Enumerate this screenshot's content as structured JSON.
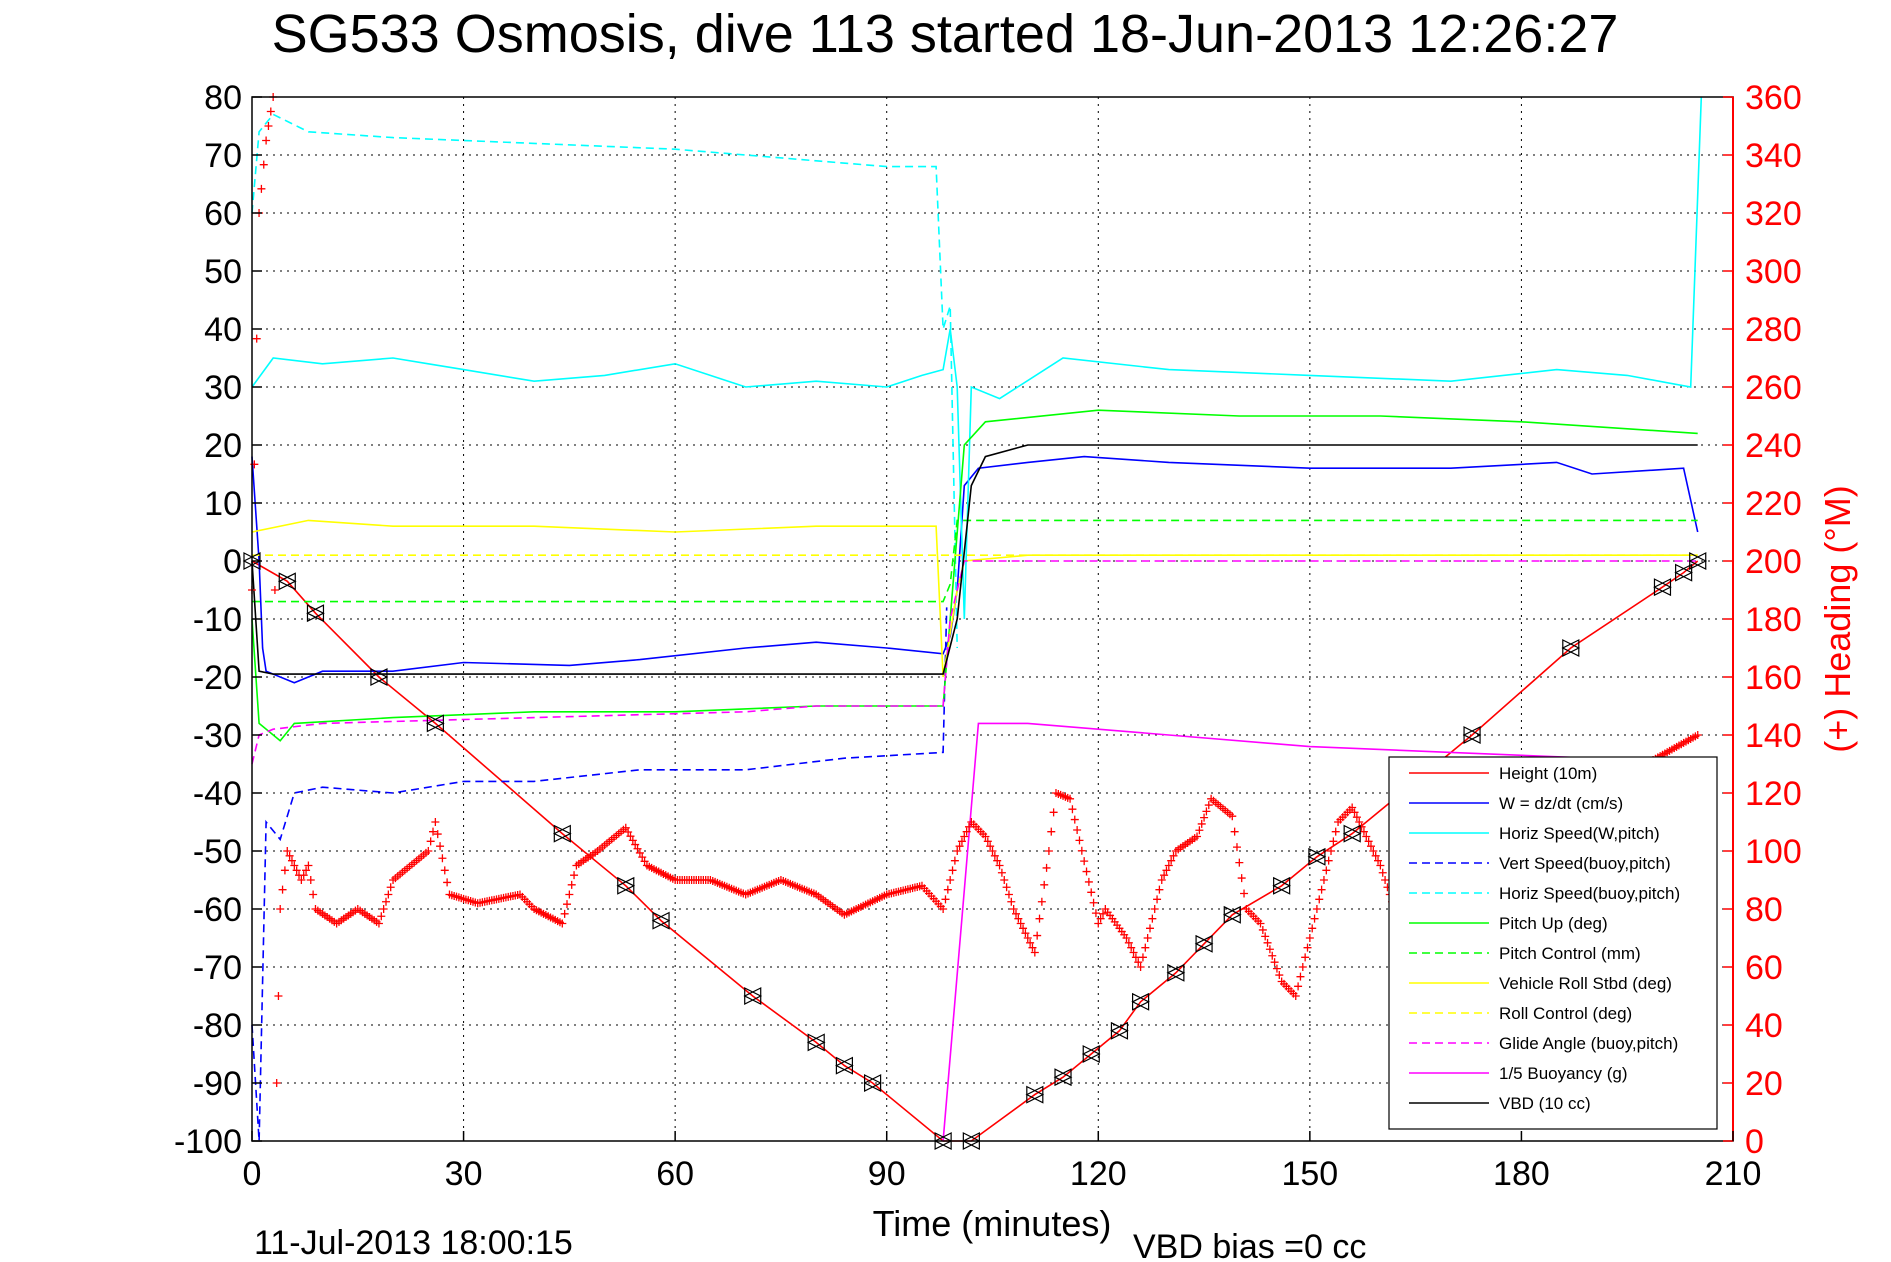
{
  "chart_data": {
    "type": "line",
    "title": "SG533 Osmosis, dive 113 started 18-Jun-2013 12:26:27",
    "xlabel": "Time (minutes)",
    "ylabel": "",
    "ylabel_right": "(+) Heading (°M)",
    "xlim": [
      0,
      210
    ],
    "ylim": [
      -100,
      80
    ],
    "ylim_right": [
      0,
      360
    ],
    "xticks": [
      "0",
      "30",
      "60",
      "90",
      "120",
      "150",
      "180",
      "210"
    ],
    "yticks": [
      "80",
      "70",
      "60",
      "50",
      "40",
      "30",
      "20",
      "10",
      "0",
      "-10",
      "-20",
      "-30",
      "-40",
      "-50",
      "-60",
      "-70",
      "-80",
      "-90",
      "-100"
    ],
    "yticks_right": [
      "360",
      "340",
      "320",
      "300",
      "280",
      "260",
      "240",
      "220",
      "200",
      "180",
      "160",
      "140",
      "120",
      "100",
      "80",
      "60",
      "40",
      "20",
      "0"
    ],
    "grid": true,
    "legend_position": "bottom-right",
    "footer_left": "11-Jul-2013 18:00:15",
    "footer_right": "VBD bias =0 cc",
    "colors": {
      "red": "#ff0000",
      "blue": "#0000ff",
      "cyan": "#00ffff",
      "green": "#00ff00",
      "yellow": "#ffff00",
      "magenta": "#ff00ff",
      "black": "#000000"
    },
    "series": [
      {
        "name": "Height (10m)",
        "color": "#ff0000",
        "style": "solid",
        "points": [
          [
            0,
            0
          ],
          [
            5,
            -3.5
          ],
          [
            9,
            -9
          ],
          [
            18,
            -20
          ],
          [
            26,
            -28
          ],
          [
            44,
            -47
          ],
          [
            53,
            -56
          ],
          [
            58,
            -62
          ],
          [
            71,
            -75
          ],
          [
            80,
            -83
          ],
          [
            84,
            -87
          ],
          [
            88,
            -90
          ],
          [
            98,
            -100
          ],
          [
            102,
            -100
          ],
          [
            111,
            -92
          ],
          [
            115,
            -89
          ],
          [
            119,
            -85
          ],
          [
            123,
            -81
          ],
          [
            126,
            -76
          ],
          [
            131,
            -71
          ],
          [
            135,
            -66
          ],
          [
            139,
            -61
          ],
          [
            146,
            -56
          ],
          [
            151,
            -51
          ],
          [
            156,
            -47
          ],
          [
            173,
            -30
          ],
          [
            187,
            -15
          ],
          [
            200,
            -4.5
          ],
          [
            203,
            -2
          ],
          [
            205,
            0
          ]
        ]
      },
      {
        "name": "W = dz/dt (cm/s)",
        "color": "#0000ff",
        "style": "solid",
        "points": [
          [
            0,
            18
          ],
          [
            1,
            0
          ],
          [
            1.5,
            -15
          ],
          [
            2,
            -19
          ],
          [
            6,
            -21
          ],
          [
            10,
            -19
          ],
          [
            20,
            -19
          ],
          [
            30,
            -17.5
          ],
          [
            45,
            -18
          ],
          [
            55,
            -17
          ],
          [
            70,
            -15
          ],
          [
            80,
            -14
          ],
          [
            90,
            -15
          ],
          [
            98,
            -16
          ],
          [
            99,
            -13
          ],
          [
            100,
            -5
          ],
          [
            101,
            13
          ],
          [
            103,
            16
          ],
          [
            110,
            17
          ],
          [
            118,
            18
          ],
          [
            130,
            17
          ],
          [
            150,
            16
          ],
          [
            170,
            16
          ],
          [
            185,
            17
          ],
          [
            190,
            15
          ],
          [
            203,
            16
          ],
          [
            205,
            5
          ]
        ]
      },
      {
        "name": "Horiz Speed(W,pitch)",
        "color": "#00ffff",
        "style": "solid",
        "points": [
          [
            0,
            30
          ],
          [
            3,
            35
          ],
          [
            10,
            34
          ],
          [
            20,
            35
          ],
          [
            25,
            34
          ],
          [
            30,
            33
          ],
          [
            40,
            31
          ],
          [
            50,
            32
          ],
          [
            60,
            34
          ],
          [
            70,
            30
          ],
          [
            80,
            31
          ],
          [
            90,
            30
          ],
          [
            95,
            32
          ],
          [
            98,
            33
          ],
          [
            99,
            40
          ],
          [
            100,
            30
          ],
          [
            101,
            -10
          ],
          [
            102,
            30
          ],
          [
            106,
            28
          ],
          [
            115,
            35
          ],
          [
            130,
            33
          ],
          [
            150,
            32
          ],
          [
            170,
            31
          ],
          [
            185,
            33
          ],
          [
            195,
            32
          ],
          [
            204,
            30
          ],
          [
            205.5,
            80
          ]
        ]
      },
      {
        "name": "Vert Speed(buoy,pitch)",
        "color": "#0000ff",
        "style": "dashed",
        "points": [
          [
            0,
            -80
          ],
          [
            1,
            -100
          ],
          [
            2,
            -45
          ],
          [
            4,
            -48
          ],
          [
            6,
            -40
          ],
          [
            10,
            -39
          ],
          [
            20,
            -40
          ],
          [
            30,
            -38
          ],
          [
            40,
            -38
          ],
          [
            55,
            -36
          ],
          [
            70,
            -36
          ],
          [
            84,
            -34
          ],
          [
            98,
            -33
          ],
          [
            98.5,
            -8
          ]
        ]
      },
      {
        "name": "Horiz Speed(buoy,pitch)",
        "color": "#00ffff",
        "style": "dashed",
        "points": [
          [
            0,
            60
          ],
          [
            1,
            74
          ],
          [
            3,
            77
          ],
          [
            8,
            74
          ],
          [
            20,
            73
          ],
          [
            40,
            72
          ],
          [
            60,
            71
          ],
          [
            70,
            70
          ],
          [
            80,
            69
          ],
          [
            90,
            68
          ],
          [
            97,
            68
          ],
          [
            98,
            40
          ],
          [
            99,
            44
          ],
          [
            100,
            -15
          ]
        ]
      },
      {
        "name": "Pitch Up (deg)",
        "color": "#00ff00",
        "style": "solid",
        "points": [
          [
            0,
            -10
          ],
          [
            1,
            -28
          ],
          [
            4,
            -31
          ],
          [
            6,
            -28
          ],
          [
            20,
            -27
          ],
          [
            40,
            -26
          ],
          [
            60,
            -26
          ],
          [
            80,
            -25
          ],
          [
            98,
            -25
          ],
          [
            99,
            -10
          ],
          [
            101,
            20
          ],
          [
            104,
            24
          ],
          [
            120,
            26
          ],
          [
            140,
            25
          ],
          [
            160,
            25
          ],
          [
            180,
            24
          ],
          [
            205,
            22
          ]
        ]
      },
      {
        "name": "Pitch Control (mm)",
        "color": "#00ff00",
        "style": "dashed",
        "points": [
          [
            0,
            -7
          ],
          [
            98,
            -7
          ],
          [
            99,
            -4
          ],
          [
            100,
            7
          ],
          [
            205,
            7
          ]
        ]
      },
      {
        "name": "Vehicle Roll Stbd (deg)",
        "color": "#ffff00",
        "style": "solid",
        "points": [
          [
            0,
            5
          ],
          [
            8,
            7
          ],
          [
            20,
            6
          ],
          [
            40,
            6
          ],
          [
            60,
            5
          ],
          [
            80,
            6
          ],
          [
            97,
            6
          ],
          [
            98,
            -20
          ],
          [
            100,
            -5
          ],
          [
            101,
            0
          ],
          [
            110,
            1
          ],
          [
            150,
            1
          ],
          [
            190,
            1
          ],
          [
            205,
            1
          ]
        ]
      },
      {
        "name": "Roll Control (deg)",
        "color": "#ffff00",
        "style": "dashed",
        "points": [
          [
            0,
            1
          ],
          [
            205,
            1
          ]
        ]
      },
      {
        "name": "Glide Angle (buoy,pitch)",
        "color": "#ff00ff",
        "style": "dashed",
        "points": [
          [
            0,
            -35
          ],
          [
            1,
            -30
          ],
          [
            3,
            -29
          ],
          [
            10,
            -28
          ],
          [
            40,
            -27
          ],
          [
            70,
            -26
          ],
          [
            80,
            -25
          ],
          [
            98,
            -25
          ],
          [
            99,
            -10
          ],
          [
            101,
            0
          ],
          [
            205,
            0
          ]
        ]
      },
      {
        "name": "1/5 Buoyancy (g)",
        "color": "#ff00ff",
        "style": "solid",
        "points": [
          [
            98,
            -100
          ],
          [
            103,
            -28
          ],
          [
            110,
            -28
          ],
          [
            130,
            -30
          ],
          [
            150,
            -32
          ],
          [
            170,
            -33
          ],
          [
            190,
            -34
          ],
          [
            205,
            -35
          ]
        ]
      },
      {
        "name": "VBD (10 cc)",
        "color": "#000000",
        "style": "solid",
        "points": [
          [
            0,
            0
          ],
          [
            1,
            -19
          ],
          [
            3,
            -19.5
          ],
          [
            98,
            -19.5
          ],
          [
            100,
            -10
          ],
          [
            102,
            13
          ],
          [
            104,
            18
          ],
          [
            110,
            20
          ],
          [
            205,
            20
          ]
        ]
      }
    ],
    "heading_series": {
      "name": "Heading",
      "color": "#ff0000",
      "marker": "+",
      "axis": "right",
      "points": [
        [
          0,
          190
        ],
        [
          1,
          320
        ],
        [
          2,
          345
        ],
        [
          3,
          360
        ],
        [
          3.5,
          20
        ],
        [
          4,
          80
        ],
        [
          5,
          100
        ],
        [
          7,
          90
        ],
        [
          8,
          95
        ],
        [
          9,
          80
        ],
        [
          12,
          75
        ],
        [
          15,
          80
        ],
        [
          18,
          75
        ],
        [
          20,
          90
        ],
        [
          25,
          100
        ],
        [
          26,
          110
        ],
        [
          28,
          85
        ],
        [
          32,
          82
        ],
        [
          38,
          85
        ],
        [
          40,
          80
        ],
        [
          44,
          75
        ],
        [
          46,
          95
        ],
        [
          49,
          100
        ],
        [
          53,
          108
        ],
        [
          56,
          95
        ],
        [
          60,
          90
        ],
        [
          65,
          90
        ],
        [
          70,
          85
        ],
        [
          75,
          90
        ],
        [
          80,
          85
        ],
        [
          84,
          78
        ],
        [
          90,
          85
        ],
        [
          95,
          88
        ],
        [
          98,
          80
        ],
        [
          100,
          100
        ],
        [
          102,
          110
        ],
        [
          104,
          105
        ],
        [
          106,
          95
        ],
        [
          108,
          80
        ],
        [
          111,
          65
        ],
        [
          113,
          100
        ],
        [
          114,
          120
        ],
        [
          116,
          118
        ],
        [
          120,
          75
        ],
        [
          121,
          80
        ],
        [
          124,
          70
        ],
        [
          126,
          60
        ],
        [
          129,
          90
        ],
        [
          131,
          100
        ],
        [
          134,
          105
        ],
        [
          136,
          118
        ],
        [
          139,
          112
        ],
        [
          141,
          80
        ],
        [
          143,
          75
        ],
        [
          146,
          55
        ],
        [
          148,
          50
        ],
        [
          150,
          70
        ],
        [
          154,
          110
        ],
        [
          156,
          115
        ],
        [
          158,
          105
        ],
        [
          160,
          95
        ],
        [
          162,
          80
        ],
        [
          164,
          60
        ],
        [
          166,
          55
        ],
        [
          168,
          50
        ],
        [
          170,
          100
        ],
        [
          172,
          95
        ],
        [
          205,
          140
        ]
      ]
    }
  }
}
